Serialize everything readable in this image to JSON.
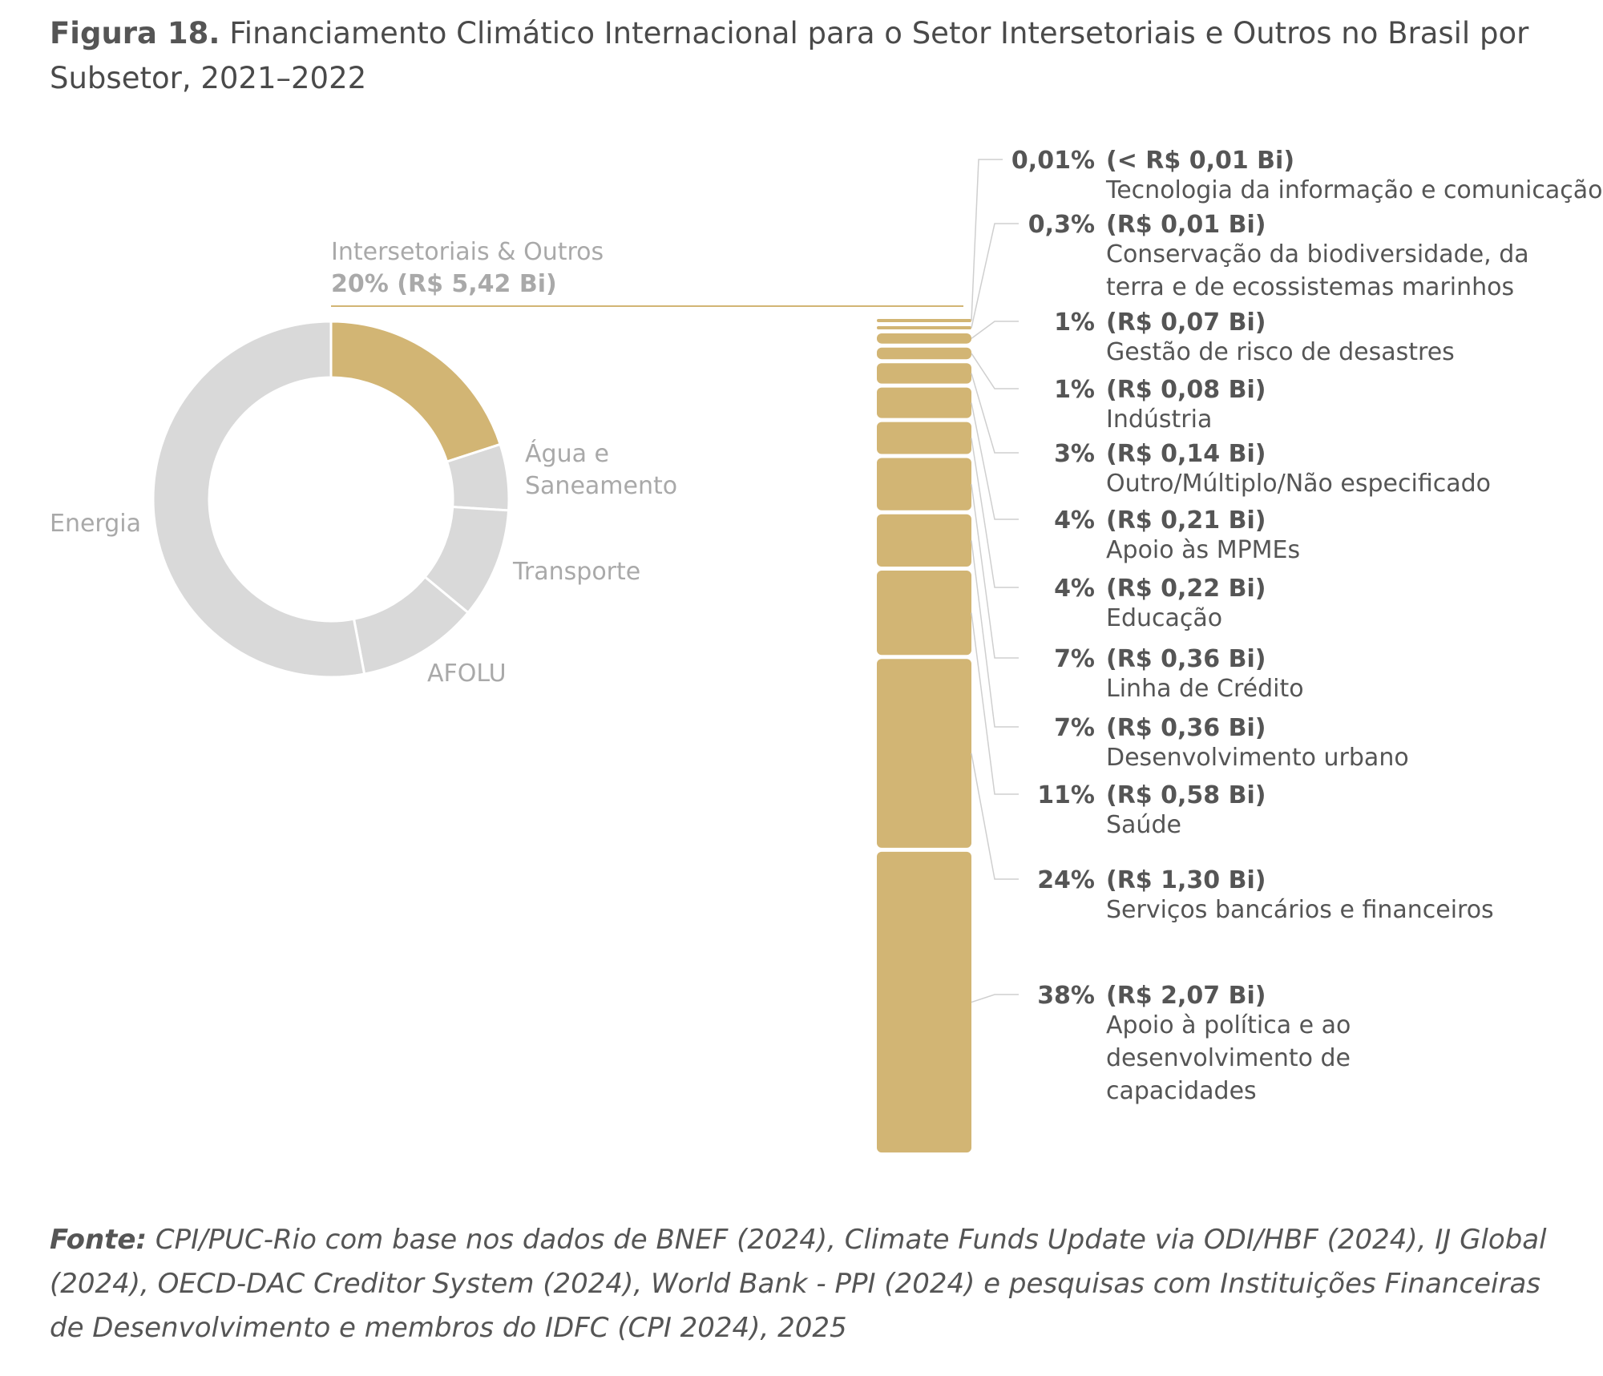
{
  "figure": {
    "number": "Figura 18.",
    "title": "Financiamento Climático Internacional para o Setor Intersetoriais e Outros no Brasil por Subsetor, 2021–2022"
  },
  "colors": {
    "highlight": "#d2b574",
    "muted": "#d9d9d9",
    "muted_text": "#a9a9a9",
    "text": "#555555"
  },
  "chart_data": [
    {
      "type": "pie",
      "variant": "donut",
      "slices": [
        {
          "name": "Intersetoriais & Outros",
          "share_pct": 20,
          "highlight": true
        },
        {
          "name": "Água e Saneamento",
          "share_pct": 6
        },
        {
          "name": "Transporte",
          "share_pct": 10
        },
        {
          "name": "AFOLU",
          "share_pct": 11
        },
        {
          "name": "Energia",
          "share_pct": 53
        }
      ],
      "labels": {
        "agua": [
          "Água e",
          "Saneamento"
        ],
        "transporte": "Transporte",
        "afolu": "AFOLU",
        "energia": "Energia"
      },
      "highlight_label": "Intersetoriais & Outros",
      "highlight_value": "20% (R$ 5,42 Bi)"
    },
    {
      "type": "bar",
      "variant": "stacked-column",
      "unit": "R$ Bi",
      "items": [
        {
          "pct": "0,01%",
          "amount": "(< R$ 0,01 Bi)",
          "value": 0.005,
          "label": [
            "Tecnologia da informação e comunicação"
          ]
        },
        {
          "pct": "0,3%",
          "amount": "(R$ 0,01 Bi)",
          "value": 0.01,
          "label": [
            "Conservação da biodiversidade, da",
            "terra e de ecossistemas marinhos"
          ]
        },
        {
          "pct": "1%",
          "amount": "(R$ 0,07 Bi)",
          "value": 0.07,
          "label": [
            "Gestão de risco de desastres"
          ]
        },
        {
          "pct": "1%",
          "amount": "(R$ 0,08 Bi)",
          "value": 0.08,
          "label": [
            "Indústria"
          ]
        },
        {
          "pct": "3%",
          "amount": "(R$ 0,14 Bi)",
          "value": 0.14,
          "label": [
            "Outro/Múltiplo/Não especificado"
          ]
        },
        {
          "pct": "4%",
          "amount": "(R$ 0,21 Bi)",
          "value": 0.21,
          "label": [
            "Apoio às MPMEs"
          ]
        },
        {
          "pct": "4%",
          "amount": "(R$ 0,22 Bi)",
          "value": 0.22,
          "label": [
            "Educação"
          ]
        },
        {
          "pct": "7%",
          "amount": "(R$ 0,36 Bi)",
          "value": 0.36,
          "label": [
            "Linha de Crédito"
          ]
        },
        {
          "pct": "7%",
          "amount": "(R$ 0,36 Bi)",
          "value": 0.36,
          "label": [
            "Desenvolvimento urbano"
          ]
        },
        {
          "pct": "11%",
          "amount": "(R$ 0,58 Bi)",
          "value": 0.58,
          "label": [
            "Saúde"
          ]
        },
        {
          "pct": "24%",
          "amount": "(R$ 1,30 Bi)",
          "value": 1.3,
          "label": [
            "Serviços bancários e financeiros"
          ]
        },
        {
          "pct": "38%",
          "amount": "(R$ 2,07 Bi)",
          "value": 2.07,
          "label": [
            "Apoio à política e ao",
            "desenvolvimento de",
            "capacidades"
          ]
        }
      ]
    }
  ],
  "source": {
    "prefix": "Fonte:",
    "text": "CPI/PUC-Rio com base nos dados de BNEF (2024), Climate Funds Update via ODI/HBF (2024), IJ Global (2024), OECD-DAC Creditor System (2024), World Bank - PPI (2024) e pesquisas com Instituições Financeiras de Desenvolvimento e membros do IDFC (CPI 2024), 2025"
  }
}
